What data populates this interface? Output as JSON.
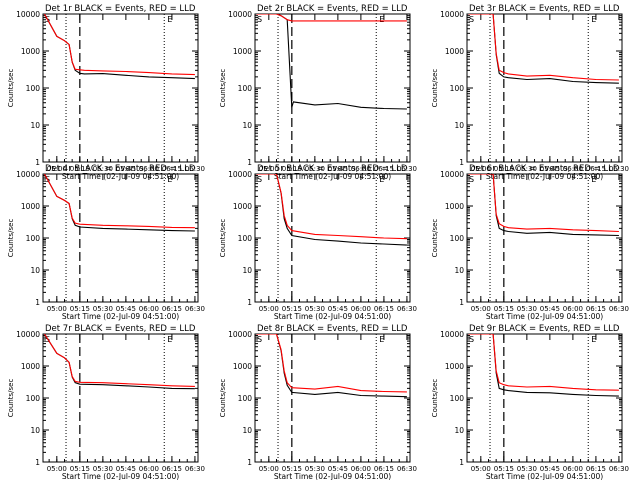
{
  "window": {
    "background": "#ffffff"
  },
  "colors": {
    "events": "#000000",
    "lld": "#ff0000",
    "axis": "#000000"
  },
  "chart_data": [
    {
      "type": "line",
      "title": "Det 1r BLACK = Events, RED = LLD",
      "xlabel": "Start Time (02-Jul-09 04:51:00)",
      "ylabel": "Counts/sec",
      "y_scale": "log",
      "ylim": [
        1,
        10000
      ],
      "xlim": [
        "04:51",
        "06:32"
      ],
      "y_tick_labels": [
        "1",
        "10",
        "100",
        "1000",
        "10000"
      ],
      "x_tick_labels": [
        "05:00",
        "05:15",
        "05:30",
        "05:45",
        "06:00",
        "06:15",
        "06:30"
      ],
      "markers": {
        "dotted": [
          "05:06",
          "06:10"
        ],
        "dashed": "05:15",
        "corner_labels": [
          "S",
          "E"
        ]
      },
      "x": [
        "04:52",
        "05:00",
        "05:05",
        "05:08",
        "05:10",
        "05:12",
        "05:15",
        "05:18",
        "05:30",
        "05:45",
        "06:00",
        "06:15",
        "06:30"
      ],
      "series": [
        {
          "name": "Events",
          "values": [
            10000,
            2500,
            1900,
            1500,
            500,
            300,
            250,
            240,
            245,
            220,
            200,
            190,
            180
          ]
        },
        {
          "name": "LLD",
          "values": [
            10000,
            2500,
            1900,
            1500,
            500,
            320,
            310,
            300,
            290,
            280,
            260,
            240,
            230
          ]
        }
      ]
    },
    {
      "type": "line",
      "title": "Det 2r BLACK = Events, RED = LLD",
      "xlabel": "Start Time (02-Jul-09 04:51:00)",
      "ylabel": "Counts/sec",
      "y_scale": "log",
      "ylim": [
        1,
        10000
      ],
      "xlim": [
        "04:51",
        "06:32"
      ],
      "y_tick_labels": [
        "1",
        "10",
        "100",
        "1000",
        "10000"
      ],
      "x_tick_labels": [
        "05:00",
        "05:15",
        "05:30",
        "05:45",
        "06:00",
        "06:15",
        "06:30"
      ],
      "markers": {
        "dotted": [
          "05:06",
          "06:10"
        ],
        "dashed": "05:15",
        "corner_labels": [
          "S",
          "E"
        ]
      },
      "x": [
        "04:52",
        "05:00",
        "05:05",
        "05:08",
        "05:12",
        "05:15",
        "05:16",
        "05:30",
        "05:45",
        "06:00",
        "06:15",
        "06:30"
      ],
      "series": [
        {
          "name": "Events",
          "values": [
            10000,
            10000,
            10000,
            9000,
            7000,
            30,
            42,
            35,
            38,
            30,
            28,
            27
          ]
        },
        {
          "name": "LLD",
          "values": [
            10000,
            10000,
            10000,
            9000,
            7000,
            6500,
            6500,
            6500,
            6500,
            6500,
            6500,
            6500
          ]
        }
      ]
    },
    {
      "type": "line",
      "title": "Det 3r BLACK = Events, RED = LLD",
      "xlabel": "Start Time (02-Jul-09 04:51:00)",
      "ylabel": "Counts/sec",
      "y_scale": "log",
      "ylim": [
        1,
        10000
      ],
      "xlim": [
        "04:51",
        "06:32"
      ],
      "y_tick_labels": [
        "1",
        "10",
        "100",
        "1000",
        "10000"
      ],
      "x_tick_labels": [
        "05:00",
        "05:15",
        "05:30",
        "05:45",
        "06:00",
        "06:15",
        "06:30"
      ],
      "markers": {
        "dotted": [
          "05:06",
          "06:10"
        ],
        "dashed": "05:15",
        "corner_labels": [
          "S",
          "E"
        ]
      },
      "x": [
        "04:52",
        "05:08",
        "05:10",
        "05:12",
        "05:15",
        "05:18",
        "05:30",
        "05:45",
        "06:00",
        "06:15",
        "06:30"
      ],
      "series": [
        {
          "name": "Events",
          "values": [
            10000,
            10000,
            800,
            250,
            200,
            190,
            170,
            180,
            150,
            140,
            135
          ]
        },
        {
          "name": "LLD",
          "values": [
            10000,
            10000,
            850,
            300,
            260,
            240,
            210,
            220,
            190,
            170,
            165
          ]
        }
      ]
    },
    {
      "type": "line",
      "title": "Det 4r BLACK = Events, RED = LLD",
      "xlabel": "Start Time (02-Jul-09 04:51:00)",
      "ylabel": "Counts/sec",
      "y_scale": "log",
      "ylim": [
        1,
        10000
      ],
      "xlim": [
        "04:51",
        "06:32"
      ],
      "y_tick_labels": [
        "1",
        "10",
        "100",
        "1000",
        "10000"
      ],
      "x_tick_labels": [
        "05:00",
        "05:15",
        "05:30",
        "05:45",
        "06:00",
        "06:15",
        "06:30"
      ],
      "markers": {
        "dotted": [
          "05:06",
          "06:10"
        ],
        "dashed": "05:15",
        "corner_labels": [
          "S",
          "E"
        ]
      },
      "x": [
        "04:52",
        "05:00",
        "05:05",
        "05:08",
        "05:10",
        "05:12",
        "05:15",
        "05:30",
        "05:45",
        "06:00",
        "06:15",
        "06:30"
      ],
      "series": [
        {
          "name": "Events",
          "values": [
            10000,
            2000,
            1500,
            1200,
            400,
            250,
            220,
            200,
            190,
            180,
            170,
            165
          ]
        },
        {
          "name": "LLD",
          "values": [
            10000,
            2000,
            1500,
            1200,
            420,
            290,
            270,
            250,
            240,
            230,
            215,
            210
          ]
        }
      ]
    },
    {
      "type": "line",
      "title": "Det 5r BLACK = Events, RED = LLD",
      "xlabel": "Start Time (02-Jul-09 04:51:00)",
      "ylabel": "Counts/sec",
      "y_scale": "log",
      "ylim": [
        1,
        10000
      ],
      "xlim": [
        "04:51",
        "06:32"
      ],
      "y_tick_labels": [
        "1",
        "10",
        "100",
        "1000",
        "10000"
      ],
      "x_tick_labels": [
        "05:00",
        "05:15",
        "05:30",
        "05:45",
        "06:00",
        "06:15",
        "06:30"
      ],
      "markers": {
        "dotted": [
          "05:06",
          "06:10"
        ],
        "dashed": "05:15",
        "corner_labels": [
          "S",
          "E"
        ]
      },
      "x": [
        "04:52",
        "05:05",
        "05:08",
        "05:10",
        "05:12",
        "05:15",
        "05:30",
        "05:45",
        "06:00",
        "06:15",
        "06:30"
      ],
      "series": [
        {
          "name": "Events",
          "values": [
            10000,
            10000,
            2500,
            400,
            200,
            120,
            90,
            80,
            70,
            65,
            60
          ]
        },
        {
          "name": "LLD",
          "values": [
            10000,
            10000,
            2600,
            500,
            250,
            170,
            130,
            120,
            110,
            100,
            95
          ]
        }
      ]
    },
    {
      "type": "line",
      "title": "Det 6r BLACK = Events, RED = LLD",
      "xlabel": "Start Time (02-Jul-09 04:51:00)",
      "ylabel": "Counts/sec",
      "y_scale": "log",
      "ylim": [
        1,
        10000
      ],
      "xlim": [
        "04:51",
        "06:32"
      ],
      "y_tick_labels": [
        "1",
        "10",
        "100",
        "1000",
        "10000"
      ],
      "x_tick_labels": [
        "05:00",
        "05:15",
        "05:30",
        "05:45",
        "06:00",
        "06:15",
        "06:30"
      ],
      "markers": {
        "dotted": [
          "05:06",
          "06:10"
        ],
        "dashed": "05:15",
        "corner_labels": [
          "S",
          "E"
        ]
      },
      "x": [
        "04:52",
        "05:08",
        "05:10",
        "05:12",
        "05:15",
        "05:18",
        "05:30",
        "05:45",
        "06:00",
        "06:15",
        "06:30"
      ],
      "series": [
        {
          "name": "Events",
          "values": [
            10000,
            10000,
            500,
            200,
            170,
            160,
            140,
            150,
            130,
            125,
            120
          ]
        },
        {
          "name": "LLD",
          "values": [
            10000,
            10000,
            550,
            280,
            230,
            210,
            190,
            200,
            180,
            170,
            160
          ]
        }
      ]
    },
    {
      "type": "line",
      "title": "Det 7r BLACK = Events, RED = LLD",
      "xlabel": "Start Time (02-Jul-09 04:51:00)",
      "ylabel": "Counts/sec",
      "y_scale": "log",
      "ylim": [
        1,
        10000
      ],
      "xlim": [
        "04:51",
        "06:32"
      ],
      "y_tick_labels": [
        "1",
        "10",
        "100",
        "1000",
        "10000"
      ],
      "x_tick_labels": [
        "05:00",
        "05:15",
        "05:30",
        "05:45",
        "06:00",
        "06:15",
        "06:30"
      ],
      "markers": {
        "dotted": [
          "05:06",
          "06:10"
        ],
        "dashed": "05:15",
        "corner_labels": [
          "S",
          "E"
        ]
      },
      "x": [
        "04:52",
        "05:00",
        "05:05",
        "05:08",
        "05:10",
        "05:12",
        "05:15",
        "05:30",
        "05:45",
        "06:00",
        "06:15",
        "06:30"
      ],
      "series": [
        {
          "name": "Events",
          "values": [
            10000,
            2500,
            1800,
            1300,
            450,
            300,
            270,
            260,
            240,
            220,
            200,
            195
          ]
        },
        {
          "name": "LLD",
          "values": [
            10000,
            2500,
            1800,
            1300,
            470,
            330,
            310,
            300,
            280,
            260,
            240,
            230
          ]
        }
      ]
    },
    {
      "type": "line",
      "title": "Det 8r BLACK = Events, RED = LLD",
      "xlabel": "Start Time (02-Jul-09 04:51:00)",
      "ylabel": "Counts/sec",
      "y_scale": "log",
      "ylim": [
        1,
        10000
      ],
      "xlim": [
        "04:51",
        "06:32"
      ],
      "y_tick_labels": [
        "1",
        "10",
        "100",
        "1000",
        "10000"
      ],
      "x_tick_labels": [
        "05:00",
        "05:15",
        "05:30",
        "05:45",
        "06:00",
        "06:15",
        "06:30"
      ],
      "markers": {
        "dotted": [
          "05:06",
          "06:10"
        ],
        "dashed": "05:15",
        "corner_labels": [
          "S",
          "E"
        ]
      },
      "x": [
        "04:52",
        "05:05",
        "05:08",
        "05:10",
        "05:12",
        "05:15",
        "05:30",
        "05:45",
        "06:00",
        "06:15",
        "06:30"
      ],
      "series": [
        {
          "name": "Events",
          "values": [
            10000,
            10000,
            3000,
            600,
            250,
            150,
            130,
            150,
            120,
            115,
            110
          ]
        },
        {
          "name": "LLD",
          "values": [
            10000,
            10000,
            3200,
            700,
            300,
            210,
            190,
            230,
            170,
            160,
            155
          ]
        }
      ]
    },
    {
      "type": "line",
      "title": "Det 9r BLACK = Events, RED = LLD",
      "xlabel": "Start Time (02-Jul-09 04:51:00)",
      "ylabel": "Counts/sec",
      "y_scale": "log",
      "ylim": [
        1,
        10000
      ],
      "xlim": [
        "04:51",
        "06:32"
      ],
      "y_tick_labels": [
        "1",
        "10",
        "100",
        "1000",
        "10000"
      ],
      "x_tick_labels": [
        "05:00",
        "05:15",
        "05:30",
        "05:45",
        "06:00",
        "06:15",
        "06:30"
      ],
      "markers": {
        "dotted": [
          "05:06",
          "06:10"
        ],
        "dashed": "05:15",
        "corner_labels": [
          "S",
          "E"
        ]
      },
      "x": [
        "04:52",
        "05:08",
        "05:10",
        "05:12",
        "05:15",
        "05:18",
        "05:30",
        "05:45",
        "06:00",
        "06:15",
        "06:30"
      ],
      "series": [
        {
          "name": "Events",
          "values": [
            10000,
            10000,
            600,
            200,
            180,
            170,
            150,
            145,
            130,
            120,
            115
          ]
        },
        {
          "name": "LLD",
          "values": [
            10000,
            10000,
            700,
            300,
            260,
            240,
            220,
            230,
            200,
            180,
            175
          ]
        }
      ]
    }
  ]
}
